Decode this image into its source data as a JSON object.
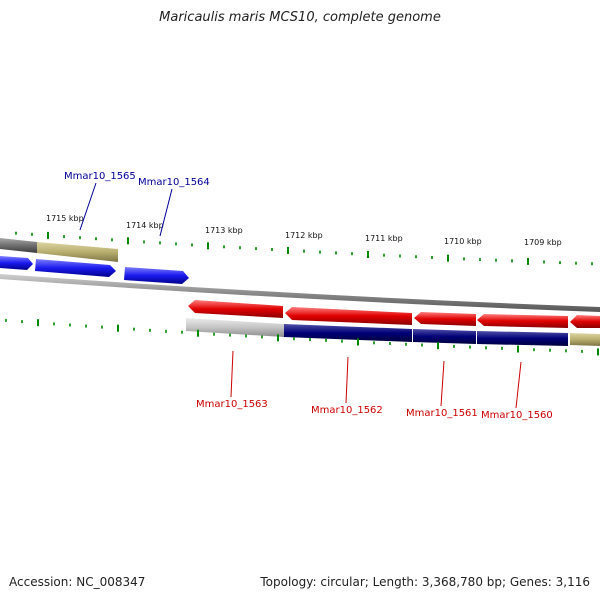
{
  "title": "Maricaulis maris MCS10, complete genome",
  "footer": {
    "accession": "Accession: NC_008347",
    "summary": "Topology: circular; Length: 3,368,780 bp; Genes: 3,116"
  },
  "colors": {
    "forward_cds": "#1a1aee",
    "reverse_cds": "#e00000",
    "forward_label": "#000099",
    "reverse_label": "#cc0000",
    "backbone": "#888888",
    "ticks": "#008800",
    "reverse_band_navy": "#000077",
    "reverse_band_light": "#c4c4c4",
    "band_olive": "#b8ae6e",
    "band_dark": "#6e6e6e"
  },
  "scale_labels": [
    "1715 kbp",
    "1714 kbp",
    "1713 kbp",
    "1712 kbp",
    "1711 kbp",
    "1710 kbp",
    "1709 kbp"
  ],
  "gene_labels_forward": [
    "Mmar10_1565",
    "Mmar10_1564"
  ],
  "gene_labels_reverse": [
    "Mmar10_1563",
    "Mmar10_1562",
    "Mmar10_1561",
    "Mmar10_1560"
  ]
}
